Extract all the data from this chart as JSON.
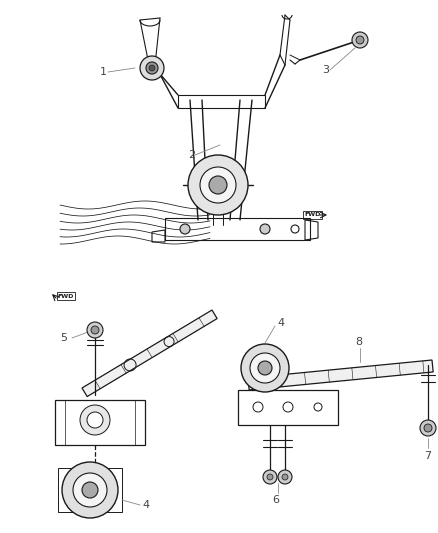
{
  "bg_color": "#ffffff",
  "line_color": "#1a1a1a",
  "label_color": "#444444",
  "leader_color": "#888888",
  "fig_width": 4.38,
  "fig_height": 5.33,
  "dpi": 100
}
